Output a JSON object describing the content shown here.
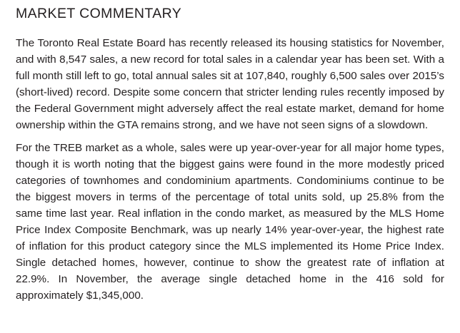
{
  "section": {
    "heading": "MARKET COMMENTARY"
  },
  "paragraphs": [
    "The Toronto Real Estate Board has recently released its housing statistics for November, and with 8,547 sales, a new record for total sales in a calendar year has been set. With a full month still left to go, total annual sales sit at 107,840, roughly 6,500 sales over 2015’s (short-lived) record. Despite some concern that stricter lending rules recently imposed by the Federal Government might adversely affect the real estate market, demand for home ownership within the GTA remains strong, and we have not seen signs of a slowdown.",
    "For the TREB market as a whole, sales were up year-over-year for all major home types, though it is worth noting that the biggest gains were found in the more modestly priced categories of townhomes and condominium apartments. Condominiums continue to be the biggest movers in terms of the percentage of total units sold, up 25.8% from the same time last year. Real inflation in the condo market, as measured by the MLS Home Price Index Composite Benchmark, was up nearly 14% year-over-year, the highest rate of inflation for this product category since the MLS implemented its Home Price Index. Single detached homes, however, continue to show the greatest rate of inflation at 22.9%. In November, the average single detached home in the 416 sold for approximately $1,345,000."
  ]
}
